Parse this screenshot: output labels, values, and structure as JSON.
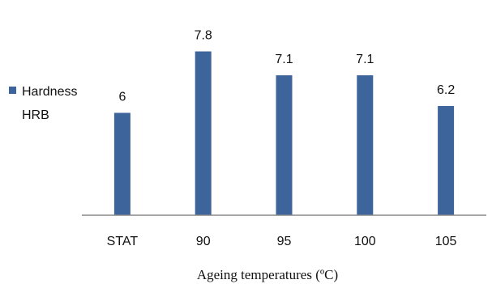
{
  "chart_data": {
    "type": "bar",
    "categories": [
      "STAT",
      "90",
      "95",
      "100",
      "105"
    ],
    "series": [
      {
        "name": "Hardness HRB",
        "name_lines": [
          "Hardness",
          "HRB"
        ],
        "values": [
          6,
          7.8,
          7.1,
          7.1,
          6.2
        ],
        "color": "#3d659c"
      }
    ],
    "data_labels": [
      "6",
      "7.8",
      "7.1",
      "7.1",
      "6.2"
    ],
    "title": "",
    "xlabel": "Ageing temperatures (ºC)",
    "ylabel": "",
    "ylim": [
      3,
      8.5
    ],
    "grid": false,
    "legend_position": "left"
  }
}
